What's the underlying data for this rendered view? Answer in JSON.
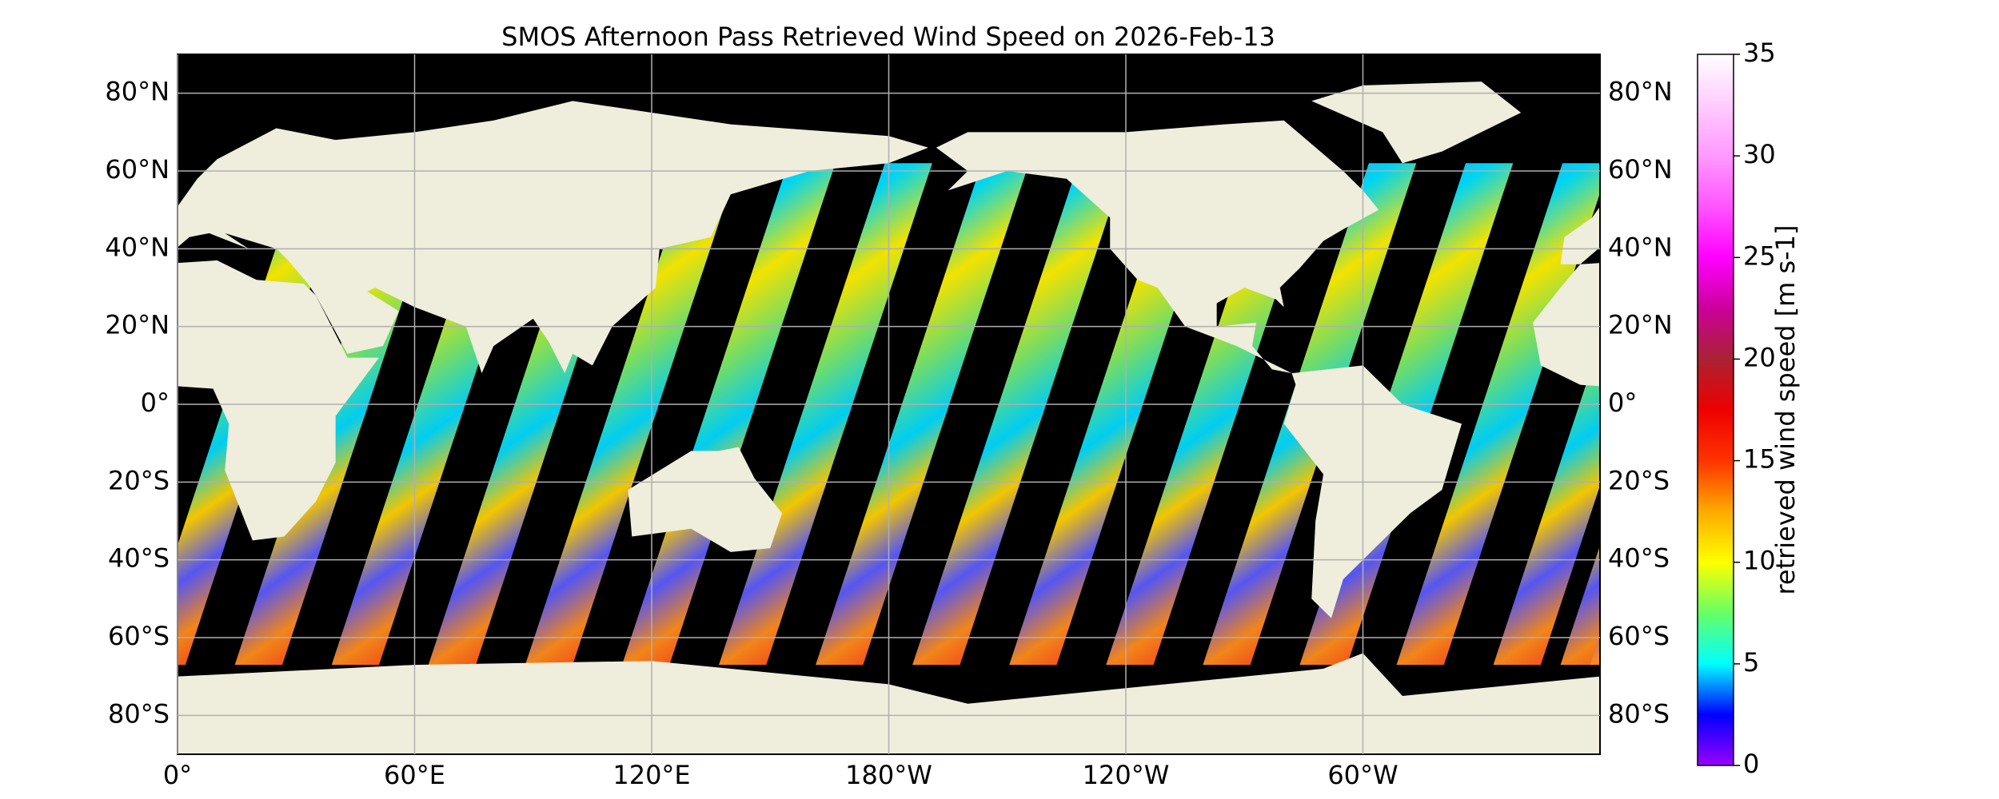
{
  "map": {
    "title": "SMOS Afternoon Pass Retrieved Wind Speed on 2026-Feb-13",
    "xlim": [
      0,
      360
    ],
    "ylim": [
      -90,
      90
    ],
    "lat_ticks": [
      {
        "value": 80,
        "label": "80°N"
      },
      {
        "value": 60,
        "label": "60°N"
      },
      {
        "value": 40,
        "label": "40°N"
      },
      {
        "value": 20,
        "label": "20°N"
      },
      {
        "value": 0,
        "label": "0°"
      },
      {
        "value": -20,
        "label": "20°S"
      },
      {
        "value": -40,
        "label": "40°S"
      },
      {
        "value": -60,
        "label": "60°S"
      },
      {
        "value": -80,
        "label": "80°S"
      }
    ],
    "lon_ticks": [
      {
        "value": 0,
        "label": "0°"
      },
      {
        "value": 60,
        "label": "60°E"
      },
      {
        "value": 120,
        "label": "120°E"
      },
      {
        "value": 180,
        "label": "180°W"
      },
      {
        "value": 240,
        "label": "120°W"
      },
      {
        "value": 300,
        "label": "60°W"
      }
    ],
    "grid": true,
    "colorbar": {
      "label": "retrieved wind speed [m s-1]",
      "lim": [
        0,
        35
      ],
      "ticks": [
        0,
        5,
        10,
        15,
        20,
        25,
        30,
        35
      ],
      "colors": [
        "#9900ff",
        "#0000ff",
        "#00ffff",
        "#66ff66",
        "#ffff00",
        "#ffaa00",
        "#ff3300",
        "#ee0000",
        "#aa2233",
        "#cc0099",
        "#ff00ff",
        "#ff55ff",
        "#ff99ff",
        "#ffccff",
        "#ffffff"
      ]
    }
  }
}
